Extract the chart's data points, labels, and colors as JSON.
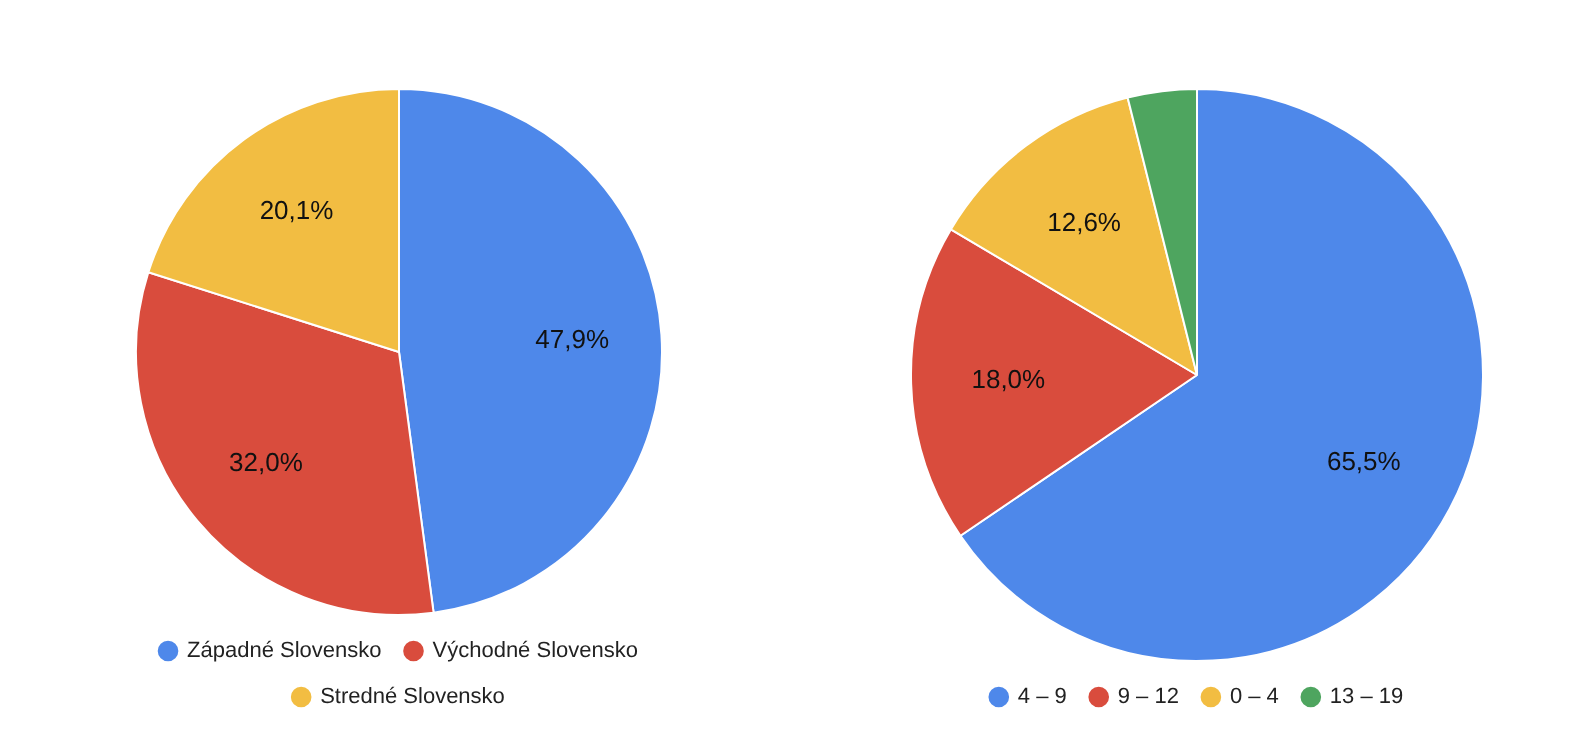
{
  "chart_data": [
    {
      "type": "pie",
      "categories": [
        "Západné Slovensko",
        "Východné Slovensko",
        "Stredné Slovensko"
      ],
      "values": [
        47.9,
        32.0,
        20.1
      ],
      "value_labels": [
        "47,9%",
        "32,0%",
        "20,1%"
      ],
      "colors": [
        "#4e88ea",
        "#d94c3d",
        "#f2bd42"
      ],
      "legend": "bottom"
    },
    {
      "type": "pie",
      "categories": [
        "4 – 9",
        "9 – 12",
        "0 – 4",
        "13 – 19"
      ],
      "values": [
        65.5,
        18.0,
        12.6,
        3.9
      ],
      "value_labels": [
        "65,5%",
        "18,0%",
        "12,6%",
        null
      ],
      "colors": [
        "#4e88ea",
        "#d94c3d",
        "#f2bd42",
        "#4ea55f"
      ],
      "legend": "bottom"
    }
  ]
}
